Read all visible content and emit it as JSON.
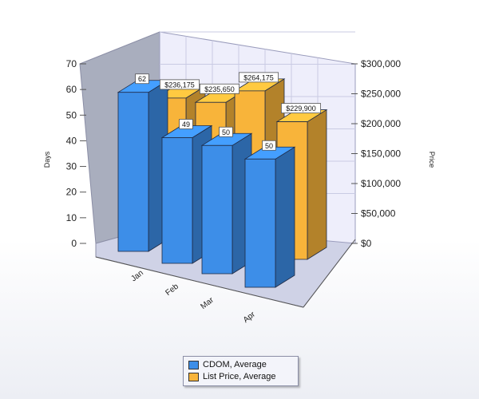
{
  "chart_data": {
    "type": "bar",
    "categories": [
      "Jan",
      "Feb",
      "Mar",
      "Apr"
    ],
    "series": [
      {
        "name": "CDOM, Average",
        "axis": "left",
        "color": "#3d8ee8",
        "values": [
          62,
          49,
          50,
          50
        ],
        "labels": [
          "62",
          "49",
          "50",
          "50"
        ]
      },
      {
        "name": "List Price, Average",
        "axis": "right",
        "color": "#f8b43a",
        "values": [
          236175,
          235650,
          264175,
          229900
        ],
        "labels": [
          "$236,175",
          "$235,650",
          "$264,175",
          "$229,900"
        ]
      }
    ],
    "ylabel": "Days",
    "y2label": "Price",
    "ylim": [
      0,
      70
    ],
    "y2lim": [
      0,
      300000
    ],
    "yticks": [
      "0",
      "10",
      "20",
      "30",
      "40",
      "50",
      "60",
      "70"
    ],
    "y2ticks": [
      "$0",
      "$50,000",
      "$100,000",
      "$150,000",
      "$200,000",
      "$250,000",
      "$300,000"
    ],
    "grid": true,
    "legend_position": "bottom-center",
    "three_d": true
  }
}
